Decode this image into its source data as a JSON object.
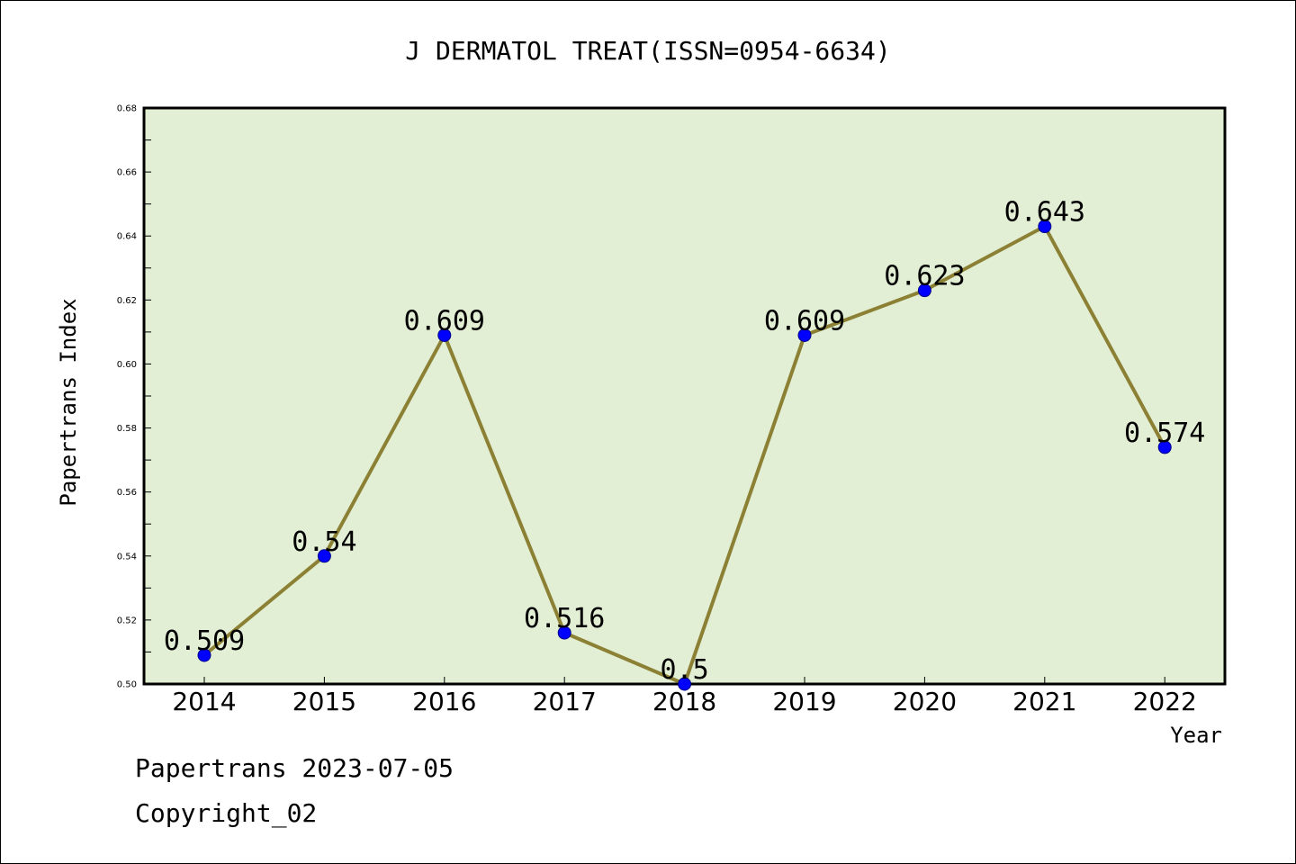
{
  "chart_data": {
    "type": "line",
    "title": "J DERMATOL TREAT(ISSN=0954-6634)",
    "xlabel": "Year",
    "ylabel": "Papertrans Index",
    "categories": [
      "2014",
      "2015",
      "2016",
      "2017",
      "2018",
      "2019",
      "2020",
      "2021",
      "2022"
    ],
    "series": [
      {
        "values": [
          0.509,
          0.54,
          0.609,
          0.516,
          0.5,
          0.609,
          0.623,
          0.643,
          0.574
        ]
      }
    ],
    "data_labels": [
      "0.509",
      "0.54",
      "0.609",
      "0.516",
      "0.5",
      "0.609",
      "0.623",
      "0.643",
      "0.574"
    ],
    "ylim": [
      0.5,
      0.68
    ],
    "yticks": [
      "0.50",
      "0.52",
      "0.54",
      "0.56",
      "0.58",
      "0.60",
      "0.62",
      "0.64",
      "0.66",
      "0.68"
    ],
    "grid": false,
    "colors": {
      "plot_background": "#e2efd5",
      "line": "#8b8033",
      "marker": "#0000ff",
      "marker_edge": "#00008b"
    }
  },
  "footer": {
    "date_line": "Papertrans 2023-07-05",
    "copyright": "Copyright_02"
  }
}
